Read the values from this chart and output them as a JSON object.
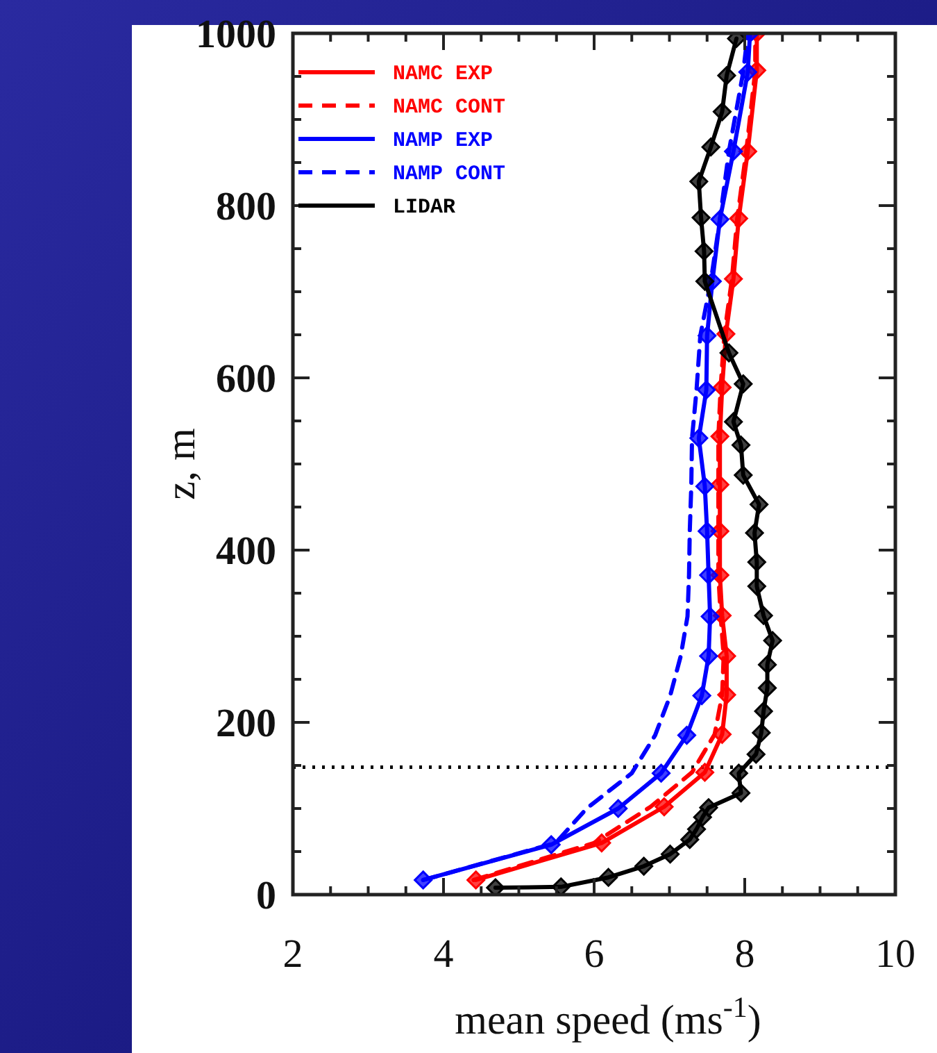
{
  "chart_data": {
    "type": "line",
    "xlabel": "mean speed (ms$^{-1}$)",
    "ylabel": "z, m",
    "xlim": [
      2,
      10
    ],
    "xticks": [
      2,
      4,
      6,
      8,
      10
    ],
    "ylim": [
      0,
      1000
    ],
    "yticks": [
      0,
      200,
      400,
      600,
      800,
      1000
    ],
    "legend": "top left",
    "grid": false,
    "ref_lines": [
      {
        "axis": "y",
        "value": 148,
        "color": "#000000",
        "line_style": "dotted"
      }
    ],
    "series": [
      {
        "name": "NAMC EXP",
        "color": "#ff0000",
        "line_style": "solid",
        "marker": "diamond",
        "x": [
          4.43,
          6.1,
          6.93,
          7.47,
          7.7,
          7.76,
          7.76,
          7.7,
          7.67,
          7.67,
          7.67,
          7.67,
          7.7,
          7.75,
          7.85,
          7.92,
          8.04,
          8.16,
          8.16
        ],
        "values": [
          17,
          60,
          102,
          142,
          186,
          232,
          277,
          324,
          371,
          422,
          476,
          532,
          589,
          651,
          715,
          785,
          863,
          957,
          1000
        ]
      },
      {
        "name": "NAMC CONT",
        "color": "#ff0000",
        "line_style": "dashed",
        "marker": "none",
        "x": [
          4.4,
          6.0,
          6.75,
          7.3,
          7.6,
          7.7,
          7.72,
          7.68,
          7.65,
          7.65,
          7.65,
          7.65,
          7.68,
          7.73,
          7.83,
          7.9,
          8.02,
          8.14,
          8.14
        ],
        "values": [
          17,
          60,
          102,
          142,
          186,
          232,
          277,
          324,
          371,
          422,
          476,
          532,
          589,
          651,
          715,
          785,
          863,
          957,
          1000
        ]
      },
      {
        "name": "NAMP EXP",
        "color": "#0000ff",
        "line_style": "solid",
        "marker": "diamond",
        "x": [
          3.73,
          5.43,
          6.32,
          6.89,
          7.23,
          7.43,
          7.52,
          7.54,
          7.52,
          7.5,
          7.47,
          7.39,
          7.49,
          7.5,
          7.57,
          7.67,
          7.85,
          8.04,
          8.07
        ],
        "values": [
          17,
          58,
          100,
          141,
          185,
          231,
          277,
          323,
          371,
          422,
          474,
          530,
          586,
          649,
          712,
          784,
          863,
          955,
          1000
        ]
      },
      {
        "name": "NAMP CONT",
        "color": "#0000ff",
        "line_style": "dashed",
        "marker": "none",
        "x": [
          3.73,
          5.49,
          5.9,
          6.5,
          6.81,
          7.01,
          7.15,
          7.24,
          7.26,
          7.27,
          7.29,
          7.3,
          7.36,
          7.41,
          7.55,
          7.67,
          7.79,
          7.98,
          8.04
        ],
        "values": [
          17,
          60,
          100,
          141,
          185,
          231,
          277,
          323,
          371,
          422,
          474,
          530,
          586,
          649,
          712,
          784,
          863,
          955,
          1000
        ]
      },
      {
        "name": "LIDAR",
        "color": "#000000",
        "line_style": "solid",
        "marker": "diamond",
        "x": [
          4.69,
          5.56,
          6.19,
          6.66,
          7.01,
          7.27,
          7.36,
          7.44,
          7.52,
          7.95,
          7.92,
          8.15,
          8.22,
          8.25,
          8.3,
          8.3,
          8.37,
          8.25,
          8.16,
          8.16,
          8.13,
          8.19,
          7.98,
          7.95,
          7.85,
          7.98,
          7.79,
          7.47,
          7.46,
          7.42,
          7.39,
          7.55,
          7.7,
          7.76,
          7.89
        ],
        "values": [
          8,
          9,
          20,
          33,
          47,
          64,
          76,
          90,
          101,
          118,
          141,
          163,
          188,
          213,
          240,
          267,
          295,
          324,
          358,
          386,
          420,
          453,
          487,
          522,
          549,
          593,
          629,
          712,
          747,
          786,
          828,
          868,
          909,
          951,
          994
        ]
      }
    ]
  }
}
